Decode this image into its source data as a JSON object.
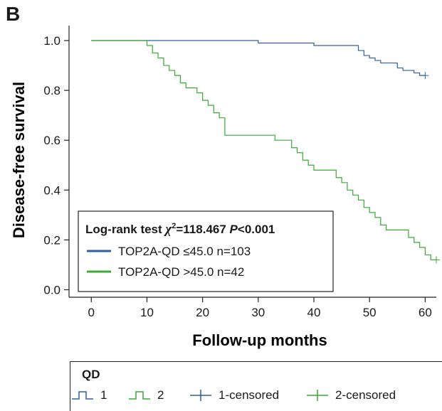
{
  "panel_label": "B",
  "chart_data": {
    "type": "line",
    "subtype": "kaplan-meier",
    "xlabel": "Follow-up months",
    "ylabel": "Disease-free survival",
    "xlim": [
      -4,
      62
    ],
    "ylim": [
      -0.03,
      1.06
    ],
    "xticks": [
      0,
      10,
      20,
      30,
      40,
      50,
      60
    ],
    "yticks": [
      "0.0",
      "0.2",
      "0.4",
      "0.6",
      "0.8",
      "1.0"
    ],
    "ytick_values": [
      0.0,
      0.2,
      0.4,
      0.6,
      0.8,
      1.0
    ],
    "grid": false,
    "series": [
      {
        "name": "1",
        "label": "TOP2A-QD ≤45.0 n=103",
        "color": "#2e5fa6",
        "steps": [
          [
            0,
            1.0
          ],
          [
            30,
            0.99
          ],
          [
            40,
            0.98
          ],
          [
            48,
            0.96
          ],
          [
            49,
            0.94
          ],
          [
            50,
            0.93
          ],
          [
            51,
            0.92
          ],
          [
            52,
            0.91
          ],
          [
            55,
            0.89
          ],
          [
            56,
            0.88
          ],
          [
            58,
            0.87
          ],
          [
            59,
            0.86
          ],
          [
            60,
            0.86
          ]
        ],
        "censored": [
          [
            60,
            0.86
          ]
        ]
      },
      {
        "name": "2",
        "label": "TOP2A-QD >45.0 n=42",
        "color": "#3aaa35",
        "steps": [
          [
            0,
            1.0
          ],
          [
            10,
            0.98
          ],
          [
            11,
            0.95
          ],
          [
            12,
            0.93
          ],
          [
            13,
            0.9
          ],
          [
            14,
            0.88
          ],
          [
            15,
            0.86
          ],
          [
            16,
            0.83
          ],
          [
            17,
            0.81
          ],
          [
            19,
            0.79
          ],
          [
            20,
            0.76
          ],
          [
            21,
            0.74
          ],
          [
            22,
            0.71
          ],
          [
            23,
            0.69
          ],
          [
            24,
            0.62
          ],
          [
            33,
            0.6
          ],
          [
            36,
            0.57
          ],
          [
            37,
            0.55
          ],
          [
            38,
            0.52
          ],
          [
            39,
            0.5
          ],
          [
            40,
            0.48
          ],
          [
            44,
            0.45
          ],
          [
            45,
            0.43
          ],
          [
            46,
            0.4
          ],
          [
            47,
            0.38
          ],
          [
            48,
            0.36
          ],
          [
            49,
            0.33
          ],
          [
            50,
            0.31
          ],
          [
            51,
            0.29
          ],
          [
            52,
            0.26
          ],
          [
            53,
            0.24
          ],
          [
            57,
            0.21
          ],
          [
            58,
            0.19
          ],
          [
            59,
            0.17
          ],
          [
            60,
            0.14
          ],
          [
            61,
            0.12
          ],
          [
            62,
            0.12
          ]
        ],
        "censored": [
          [
            62,
            0.12
          ]
        ]
      }
    ],
    "inset_legend": {
      "test_prefix": "Log-rank test",
      "chi_symbol": "χ",
      "chi_sup": "2",
      "chi_value": "=118.467",
      "p_symbol": "P",
      "p_value": "<0.001",
      "entries": [
        {
          "label": "TOP2A-QD ≤45.0 n=103",
          "color": "#2e5fa6"
        },
        {
          "label": "TOP2A-QD >45.0 n=42",
          "color": "#3aaa35"
        }
      ],
      "placement": "bottom-left"
    },
    "bottom_legend": {
      "title": "QD",
      "items": [
        {
          "label": "1",
          "symbol": "step",
          "color": "#2e5fa6"
        },
        {
          "label": "2",
          "symbol": "step",
          "color": "#3aaa35"
        },
        {
          "label": "1-censored",
          "symbol": "cross",
          "color": "#2e5fa6"
        },
        {
          "label": "2-censored",
          "symbol": "cross",
          "color": "#3aaa35"
        }
      ]
    }
  }
}
